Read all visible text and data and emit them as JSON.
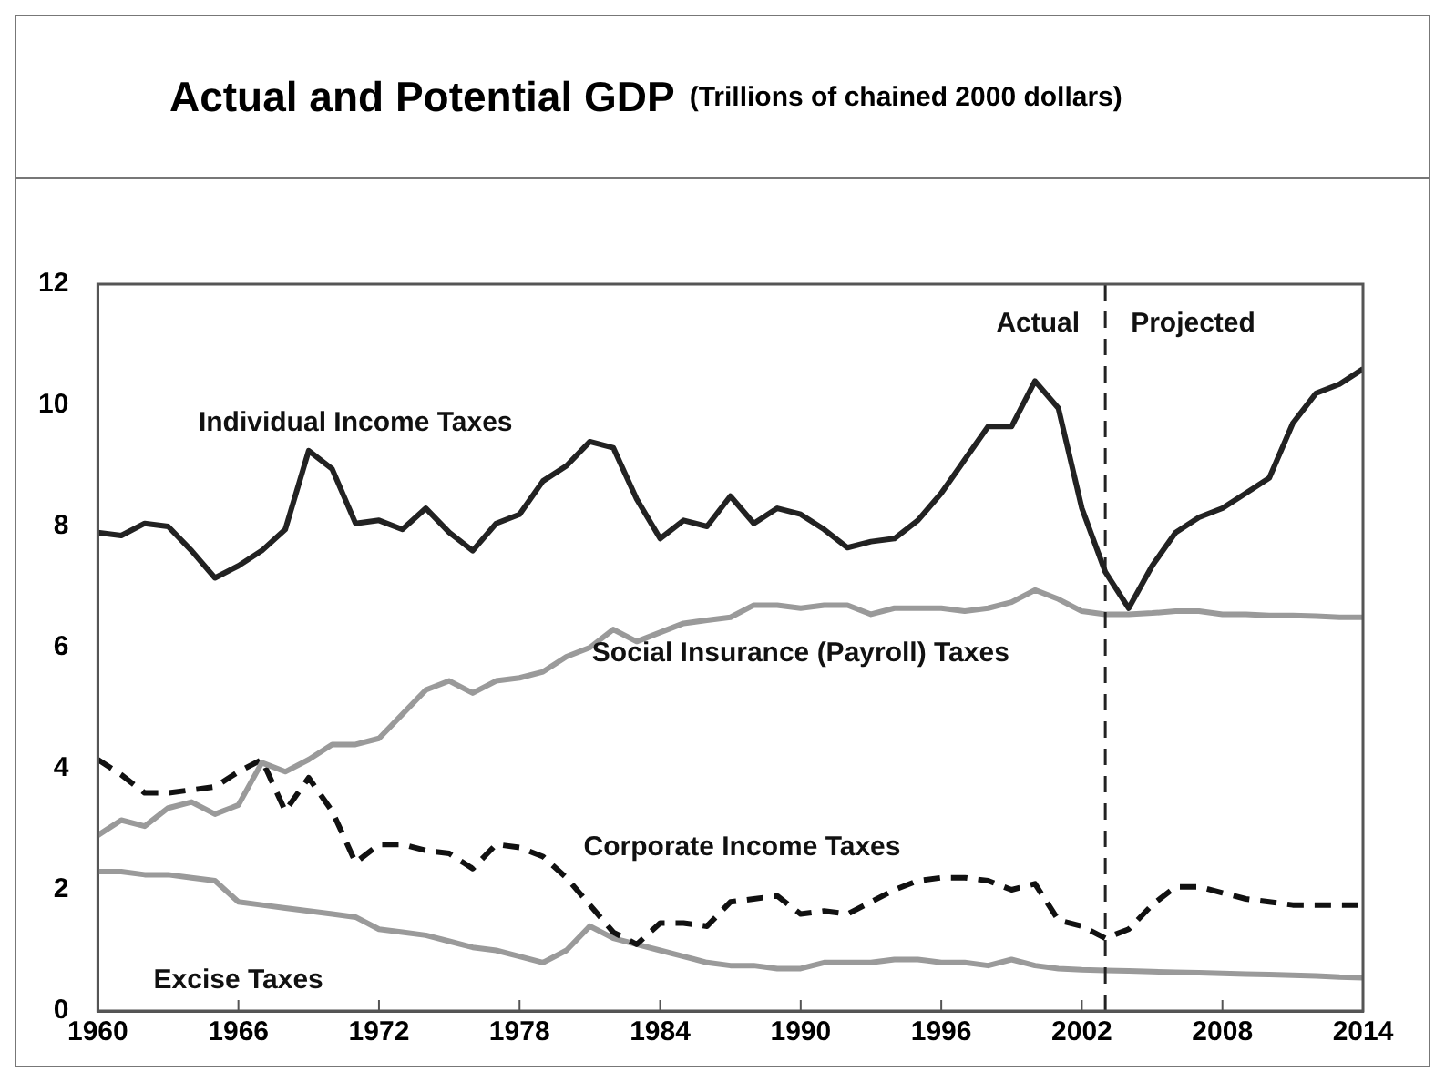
{
  "chart_data": {
    "type": "line",
    "title": "Actual and Potential GDP",
    "subtitle": "(Trillions of chained 2000 dollars)",
    "x": [
      1960,
      1961,
      1962,
      1963,
      1964,
      1965,
      1966,
      1967,
      1968,
      1969,
      1970,
      1971,
      1972,
      1973,
      1974,
      1975,
      1976,
      1977,
      1978,
      1979,
      1980,
      1981,
      1982,
      1983,
      1984,
      1985,
      1986,
      1987,
      1988,
      1989,
      1990,
      1991,
      1992,
      1993,
      1994,
      1995,
      1996,
      1997,
      1998,
      1999,
      2000,
      2001,
      2002,
      2003,
      2004,
      2005,
      2006,
      2007,
      2008,
      2009,
      2010,
      2011,
      2012,
      2013,
      2014
    ],
    "series": [
      {
        "name": "Individual Income Taxes",
        "color": "#222222",
        "line_style": "solid",
        "values": [
          7.9,
          7.85,
          8.05,
          8.0,
          7.6,
          7.15,
          7.35,
          7.6,
          7.95,
          9.25,
          8.95,
          8.05,
          8.1,
          7.95,
          8.3,
          7.9,
          7.6,
          8.05,
          8.2,
          8.75,
          9.0,
          9.4,
          9.3,
          8.45,
          7.8,
          8.1,
          8.0,
          8.5,
          8.05,
          8.3,
          8.2,
          7.95,
          7.65,
          7.75,
          7.8,
          8.1,
          8.55,
          9.1,
          9.65,
          9.65,
          10.4,
          9.95,
          8.3,
          7.25,
          6.65,
          7.35,
          7.9,
          8.15,
          8.3,
          8.55,
          8.8,
          9.7,
          10.2,
          10.35,
          10.6
        ]
      },
      {
        "name": "Social Insurance (Payroll) Taxes",
        "color": "#9a9a9a",
        "line_style": "solid",
        "values": [
          2.9,
          3.15,
          3.05,
          3.35,
          3.45,
          3.25,
          3.4,
          4.1,
          3.95,
          4.15,
          4.4,
          4.4,
          4.5,
          4.9,
          5.3,
          5.45,
          5.25,
          5.45,
          5.5,
          5.6,
          5.85,
          6.0,
          6.3,
          6.1,
          6.25,
          6.4,
          6.45,
          6.5,
          6.7,
          6.7,
          6.65,
          6.7,
          6.7,
          6.55,
          6.65,
          6.65,
          6.65,
          6.6,
          6.65,
          6.75,
          6.95,
          6.8,
          6.6,
          6.55,
          6.55,
          6.57,
          6.6,
          6.6,
          6.55,
          6.55,
          6.53,
          6.53,
          6.52,
          6.5,
          6.5
        ]
      },
      {
        "name": "Corporate Income Taxes",
        "color": "#111111",
        "line_style": "dashed",
        "values": [
          4.15,
          3.9,
          3.6,
          3.6,
          3.65,
          3.7,
          3.95,
          4.15,
          3.3,
          3.85,
          3.3,
          2.45,
          2.75,
          2.75,
          2.65,
          2.6,
          2.35,
          2.75,
          2.7,
          2.55,
          2.2,
          1.75,
          1.3,
          1.1,
          1.45,
          1.45,
          1.4,
          1.8,
          1.85,
          1.9,
          1.6,
          1.65,
          1.6,
          1.8,
          2.0,
          2.15,
          2.2,
          2.2,
          2.15,
          2.0,
          2.1,
          1.5,
          1.4,
          1.2,
          1.35,
          1.75,
          2.05,
          2.05,
          1.95,
          1.85,
          1.8,
          1.75,
          1.75,
          1.75,
          1.75
        ]
      },
      {
        "name": "Excise Taxes",
        "color": "#9a9a9a",
        "line_style": "solid",
        "values": [
          2.3,
          2.3,
          2.25,
          2.25,
          2.2,
          2.15,
          1.8,
          1.75,
          1.7,
          1.65,
          1.6,
          1.55,
          1.35,
          1.3,
          1.25,
          1.15,
          1.05,
          1.0,
          0.9,
          0.8,
          1.0,
          1.4,
          1.2,
          1.1,
          1.0,
          0.9,
          0.8,
          0.75,
          0.75,
          0.7,
          0.7,
          0.8,
          0.8,
          0.8,
          0.85,
          0.85,
          0.8,
          0.8,
          0.75,
          0.85,
          0.75,
          0.7,
          0.68,
          0.67,
          0.66,
          0.65,
          0.64,
          0.63,
          0.62,
          0.61,
          0.6,
          0.59,
          0.58,
          0.56,
          0.55
        ]
      }
    ],
    "xlim": [
      1960,
      2014
    ],
    "xticks": [
      1960,
      1966,
      1972,
      1978,
      1984,
      1990,
      1996,
      2002,
      2008,
      2014
    ],
    "ylim": [
      0,
      12
    ],
    "yticks": [
      0,
      2,
      4,
      6,
      8,
      10,
      12
    ],
    "ref_lines": [
      {
        "axis": "x",
        "value": 2003,
        "line_style": "dashed",
        "color": "#222222"
      }
    ],
    "annotations": [
      "Actual",
      "Projected"
    ],
    "grid": false,
    "legend": false,
    "marker": "none"
  }
}
